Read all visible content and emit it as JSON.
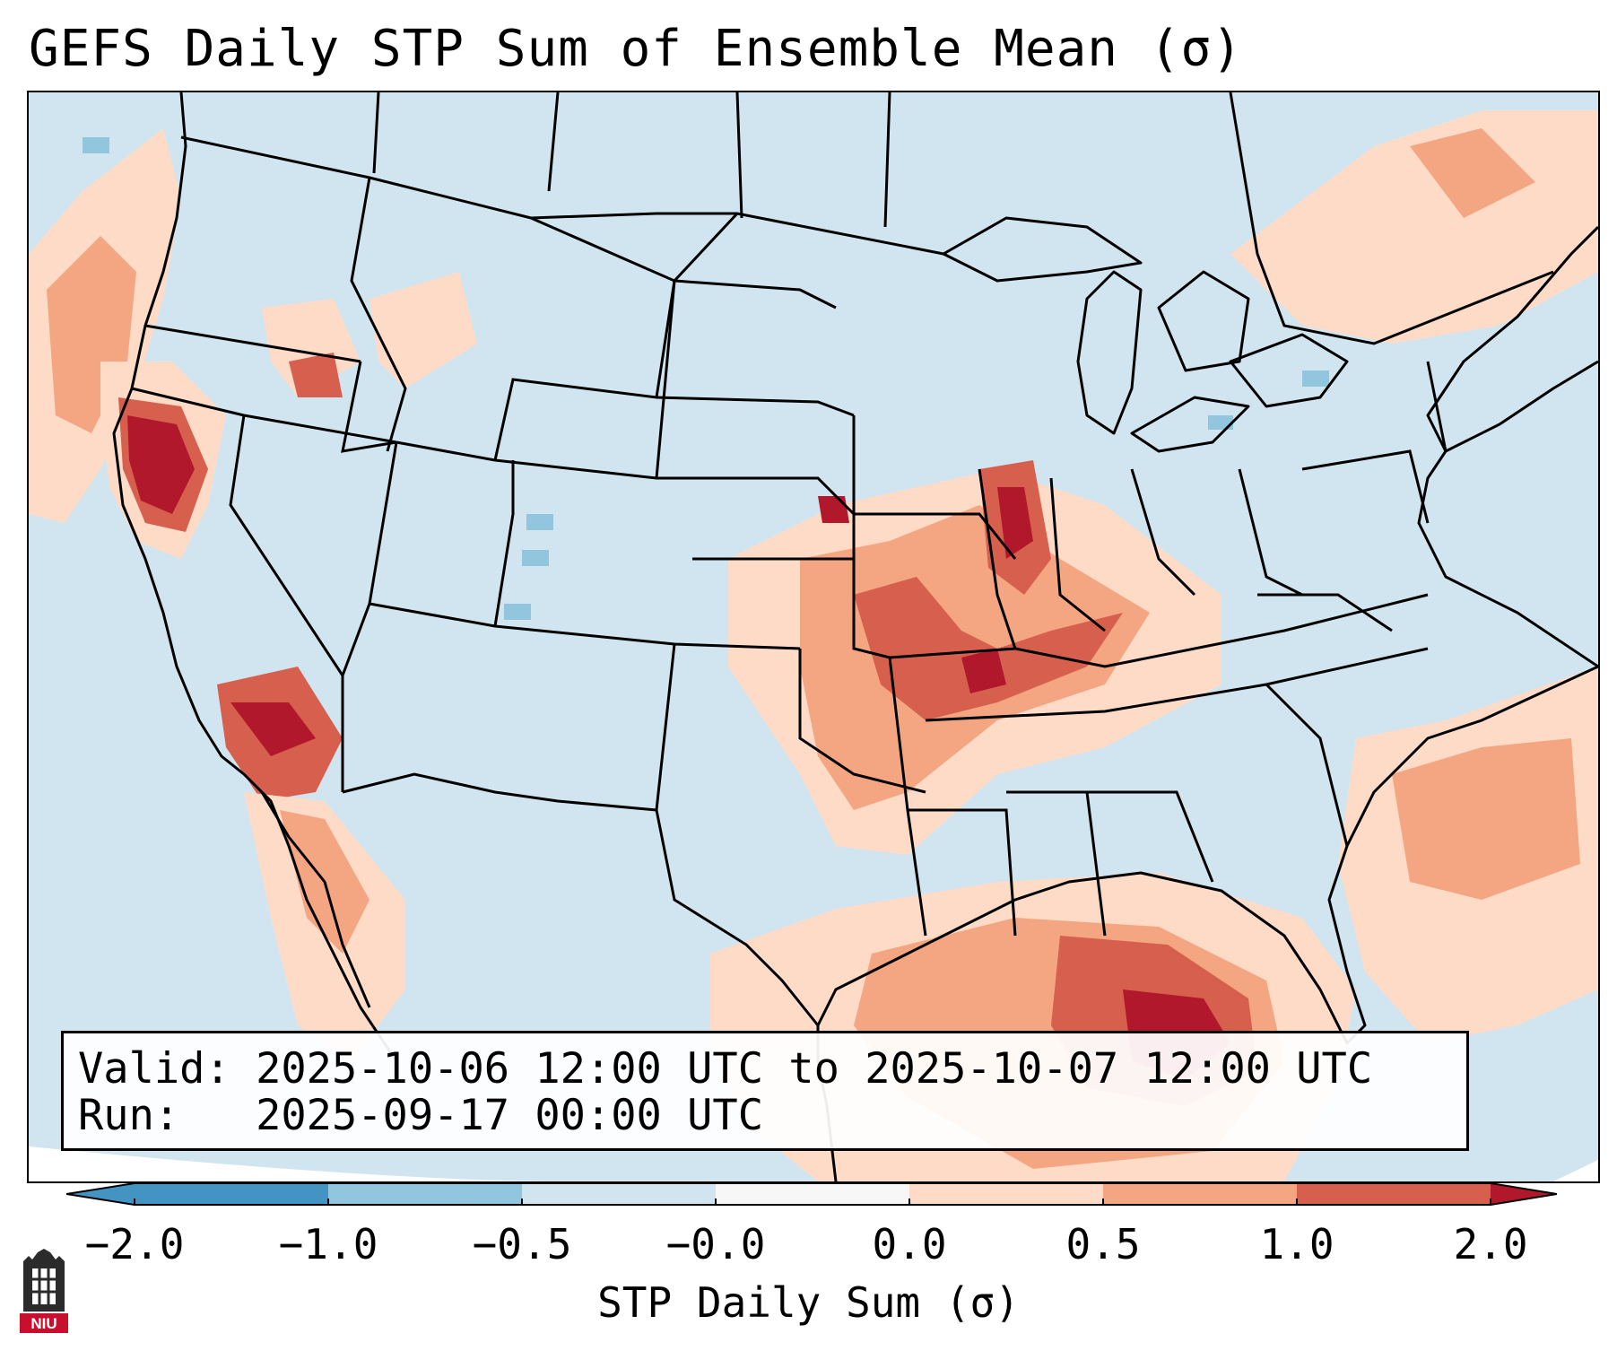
{
  "title": "GEFS Daily STP Sum of Ensemble Mean (σ)",
  "info": {
    "valid_label": "Valid:",
    "valid_value": "2025-10-06 12:00 UTC to 2025-10-07 12:00 UTC",
    "run_label": "Run:",
    "run_value": "2025-09-17 00:00 UTC"
  },
  "colorbar": {
    "label": "STP Daily Sum (σ)",
    "ticks": [
      "−2.0",
      "−1.0",
      "−0.5",
      "−0.0",
      "0.0",
      "0.5",
      "1.0",
      "2.0"
    ],
    "colors": [
      "#4393c3",
      "#92c5de",
      "#d1e5f0",
      "#f7f7f7",
      "#fddbc7",
      "#f4a582",
      "#d6604d",
      "#b2182b"
    ]
  },
  "map_colors": {
    "background": "#d1e5f0",
    "low": "#fddbc7",
    "mid": "#f4a582",
    "high": "#d6604d",
    "max": "#b2182b",
    "neg": "#92c5de"
  },
  "logo": {
    "text": "NIU"
  }
}
